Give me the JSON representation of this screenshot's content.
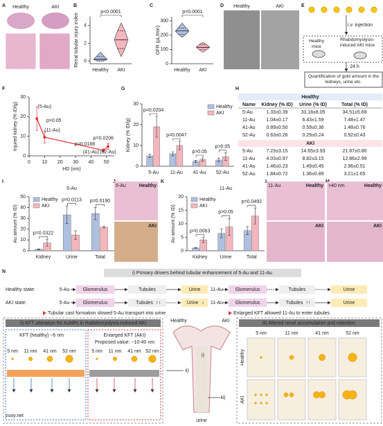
{
  "panels": {
    "letters": [
      "A",
      "B",
      "C",
      "D",
      "E",
      "F",
      "G",
      "H",
      "I",
      "J",
      "K",
      "L",
      "M",
      "N"
    ]
  },
  "images": {
    "A": {
      "labels": [
        "Healthy",
        "AKI"
      ]
    },
    "D": {
      "labels": [
        "Healthy",
        "AKI"
      ]
    },
    "J": {
      "labels": [
        "5-Au",
        "Healthy",
        "AKI"
      ]
    },
    "L": {
      "labels": [
        "11-Au",
        "Healthy",
        "AKI"
      ]
    },
    "M": {
      "labels": [
        ">40 nm",
        "Healthy",
        "AKI"
      ]
    }
  },
  "scheme_e": {
    "injection": "i.v. injection",
    "healthy": "Healthy mice",
    "aki": "Rhabdomyolysis-induced AKI mice",
    "time": "24 h",
    "quantification": "Quantification of gold amount in the kidneys, urine etc."
  },
  "chart_data": [
    {
      "type": "violin",
      "y_label": "Renal tubular injury index",
      "categories": [
        "Healthy",
        "AKI"
      ],
      "colors": [
        "#aebfe0",
        "#f4b6bd"
      ],
      "min": [
        0,
        0.5
      ],
      "q1": [
        0,
        1.4
      ],
      "median": [
        0.2,
        2.4
      ],
      "q3": [
        0.5,
        3.4
      ],
      "max": [
        1,
        4.3
      ],
      "ylim": [
        -0.3,
        5
      ],
      "yticks": [
        0,
        2,
        4
      ],
      "annotations": [
        "p<0.0001"
      ]
    },
    {
      "type": "violin",
      "y_label": "GFR (μL/min)",
      "categories": [
        "Healthy",
        "AKI"
      ],
      "colors": [
        "#aebfe0",
        "#f4b6bd"
      ],
      "min": [
        185,
        80
      ],
      "q1": [
        205,
        100
      ],
      "median": [
        230,
        115
      ],
      "q3": [
        250,
        135
      ],
      "max": [
        285,
        150
      ],
      "ylim": [
        0,
        330
      ],
      "yticks": [
        0,
        100,
        200,
        300
      ],
      "annotations": [
        "p<0.0001"
      ]
    },
    {
      "type": "line",
      "x_label": "HD (nm)",
      "y_label": "Injured kidney  (% ID/g)",
      "x": [
        5,
        10,
        48,
        51
      ],
      "values": [
        19,
        9.5,
        2.8,
        4.8
      ],
      "errors": [
        6,
        3,
        0.8,
        1.5
      ],
      "color": "#e0333a",
      "xlim": [
        0,
        55
      ],
      "xticks": [
        0,
        10,
        20,
        30,
        40,
        50
      ],
      "ylim": [
        0,
        30
      ],
      "yticks": [
        0,
        10,
        20,
        30
      ],
      "annotations": [
        "(5-Au)",
        "p>0.05",
        "(11-Au)",
        "p=0.0206",
        "p=0.0188",
        "(41-Au)",
        "(52-Au)"
      ]
    },
    {
      "type": "bar",
      "y_label": "Kidney (% ID/g)",
      "categories": [
        "5-Au",
        "11-Au",
        "41-Au",
        "52-Au"
      ],
      "series": [
        {
          "name": "Healthy",
          "color": "#aebfe0",
          "values": [
            5,
            6,
            2.4,
            3
          ],
          "errors": [
            0.8,
            1,
            0.5,
            0.8
          ]
        },
        {
          "name": "AKI",
          "color": "#f4b6bd",
          "values": [
            19,
            10,
            3.2,
            4.6
          ],
          "errors": [
            5,
            2,
            0.8,
            1.8
          ]
        }
      ],
      "ylim": [
        0,
        30
      ],
      "yticks": [
        0,
        10,
        20,
        30
      ],
      "legend": "upper right",
      "annotations": [
        "p=0.0204",
        "p=0.0047",
        "p>0.05",
        "p>0.05"
      ]
    },
    {
      "type": "bar",
      "title": "5-Au",
      "y_label": "Au amount (% ID)",
      "categories": [
        "Kidney",
        "Urine",
        "Total"
      ],
      "series": [
        {
          "name": "Healthy",
          "color": "#aebfe0",
          "values": [
            1.33,
            33.18,
            34.51
          ],
          "errors": [
            0.39,
            8.05,
            5.69
          ]
        },
        {
          "name": "AKI",
          "color": "#f4b6bd",
          "values": [
            7.23,
            14.65,
            21.87
          ],
          "errors": [
            3.15,
            3.93,
            0.8
          ]
        }
      ],
      "ylim": [
        0,
        50
      ],
      "yticks": [
        0,
        10,
        20,
        30,
        40,
        50
      ],
      "legend": "upper left",
      "annotations": [
        "p=0.0322",
        "p=0.0113",
        "p=0.0190"
      ]
    },
    {
      "type": "bar",
      "title": "11-Au",
      "y_label": "Au amount (% ID)",
      "categories": [
        "Kidney",
        "Urine",
        "Total"
      ],
      "series": [
        {
          "name": "Healthy",
          "color": "#aebfe0",
          "values": [
            1.04,
            6.43,
            7.48
          ],
          "errors": [
            0.17,
            1.59,
            1.47
          ]
        },
        {
          "name": "AKI",
          "color": "#f4b6bd",
          "values": [
            4.03,
            8.82,
            12.86
          ],
          "errors": [
            0.97,
            3.15,
            2.99
          ]
        }
      ],
      "ylim": [
        0,
        20
      ],
      "yticks": [
        0,
        5,
        10,
        15,
        20
      ],
      "legend": "upper left",
      "annotations": [
        "p=0.0063",
        "p>0.05",
        "p=0.0492"
      ]
    }
  ],
  "table": {
    "columns": [
      "Name",
      "Kidney (% ID)",
      "Urine (% ID)",
      "Total  (% ID)"
    ],
    "sections": [
      {
        "title": "Healthy",
        "rows": [
          [
            "5-Au",
            "1.33±0.39",
            "33.18±8.05",
            "34.51±5.69"
          ],
          [
            "11-Au",
            "1.04±0.17",
            "6.43±1.59",
            "7.48±1.47"
          ],
          [
            "41-Au",
            "0.89±0.50",
            "0.59±0.36",
            "1.48±0.76"
          ],
          [
            "52-Au",
            "0.63±0.26",
            "0.29±0.24",
            "0.92±0.43"
          ]
        ]
      },
      {
        "title": "AKI",
        "rows": [
          [
            "5-Au",
            "7.23±3.15",
            "14.65±3.93",
            "21.87±0.80"
          ],
          [
            "11-Au",
            "4.03±0.97",
            "8.82±3.15",
            "12.86±2.99"
          ],
          [
            "41-Au",
            "1.46±0.23",
            "1.49±0.45",
            "2.96±0.51"
          ],
          [
            "52-Au",
            "1.84±0.72",
            "1.36±0.89",
            "3.21±1.65"
          ]
        ]
      }
    ]
  },
  "scheme_n": {
    "title_i": "i) Primary drivers behind tubular enhancement of 5-Au and 11-Au",
    "healthy_state": "Healthy state:",
    "aki_state": "AKI state:",
    "np5": "5-Au",
    "np11": "11-Au",
    "glomerulus": "Glomerulus",
    "tubules": "Tubules",
    "urine": "Urine",
    "up": "↑↑",
    "down": "↓",
    "note_5": "Tubular cast formation slowed 5-Au transport into urine",
    "note_11": "Enlarged KFT allowed 11-Au to enter tubules",
    "title_ii": "ii) KFT alteration for AuNPs in rhabdomyolysis-induced AKI",
    "kft_healthy": "KFT (healthy) ~6 nm",
    "kft_aki": "Enlarged KFT (AKI)",
    "kft_proposed": "Proposed value: ~10-40 nm",
    "sizes": [
      "5 nm",
      "11 nm",
      "41 nm",
      "52 nm"
    ],
    "healthy": "Healthy",
    "aki": "AKI",
    "roman": [
      "i)",
      "ii)",
      "iii)"
    ],
    "urine_lower": "urine",
    "title_iii": "iii) Altered renal accumulation and retention"
  },
  "watermark": "zuoy.net"
}
